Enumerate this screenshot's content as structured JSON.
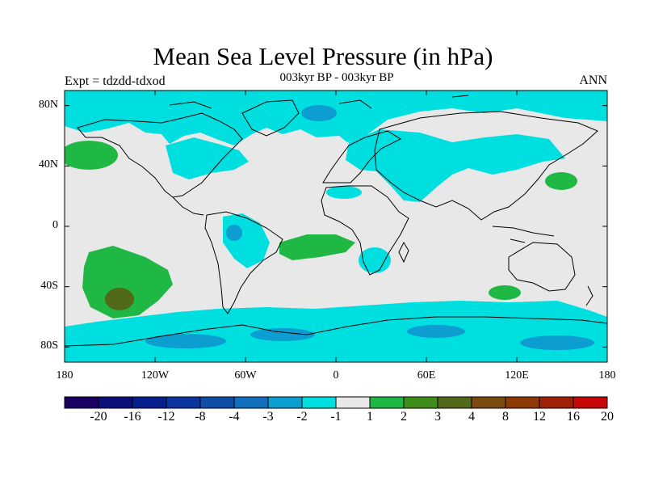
{
  "header": {
    "title": "Mean Sea Level Pressure (in hPa)",
    "left_label": "Expt = tdzdd-tdxod",
    "center_label": "003kyr BP - 003kyr BP",
    "right_label": "ANN"
  },
  "axes": {
    "x_ticks": [
      {
        "value": -180,
        "label": "180"
      },
      {
        "value": -120,
        "label": "120W"
      },
      {
        "value": -60,
        "label": "60W"
      },
      {
        "value": 0,
        "label": "0"
      },
      {
        "value": 60,
        "label": "60E"
      },
      {
        "value": 120,
        "label": "120E"
      },
      {
        "value": 180,
        "label": "180"
      }
    ],
    "y_ticks": [
      {
        "value": 80,
        "label": "80N"
      },
      {
        "value": 40,
        "label": "40N"
      },
      {
        "value": 0,
        "label": "0"
      },
      {
        "value": -40,
        "label": "40S"
      },
      {
        "value": -80,
        "label": "80S"
      }
    ],
    "lon_range": [
      -180,
      180
    ],
    "lat_range": [
      -90,
      90
    ]
  },
  "colorbar": {
    "colors": [
      "#1a0063",
      "#0b0f7a",
      "#071f8e",
      "#0a349f",
      "#0e4ea8",
      "#1070be",
      "#0c9ed0",
      "#00dfe0",
      "#e8e8e8",
      "#1fb845",
      "#3f8e1c",
      "#52691a",
      "#7a4a10",
      "#8f3a06",
      "#9f2206",
      "#c80808"
    ],
    "labels": [
      "-20",
      "-16",
      "-12",
      "-8",
      "-4",
      "-3",
      "-2",
      "-1",
      "1",
      "2",
      "3",
      "4",
      "8",
      "12",
      "16",
      "20"
    ]
  },
  "palette": {
    "neutral": "#e8e8e8",
    "neg1": "#00dfe0",
    "neg2": "#0c9ed0",
    "pos1": "#1fb845",
    "pos2": "#3f8e1c",
    "pos3": "#52691a"
  }
}
